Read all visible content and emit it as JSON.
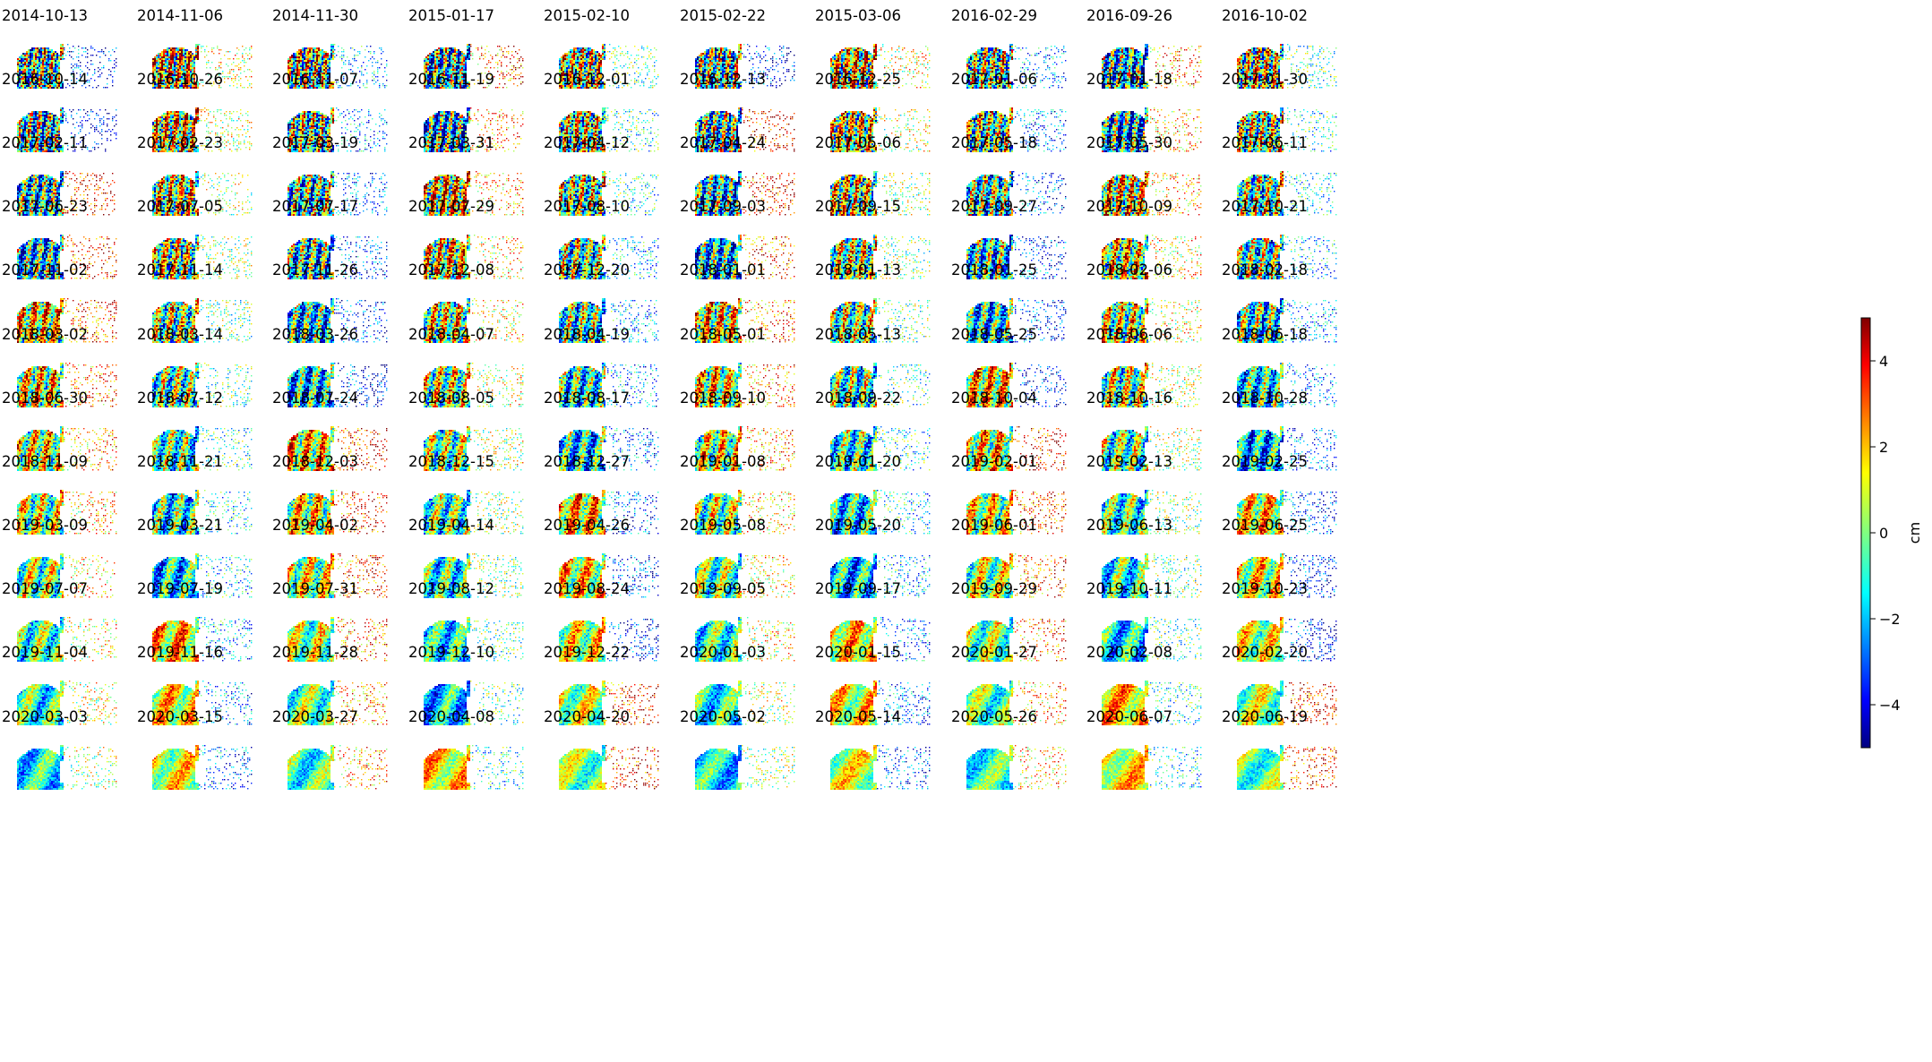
{
  "chart_data": {
    "type": "heatmap",
    "title": "",
    "layout": {
      "rows": 12,
      "cols": 10
    },
    "panels": [
      "2014-10-13",
      "2014-11-06",
      "2014-11-30",
      "2015-01-17",
      "2015-02-10",
      "2015-02-22",
      "2015-03-06",
      "2016-02-29",
      "2016-09-26",
      "2016-10-02",
      "2016-10-14",
      "2016-10-26",
      "2016-11-07",
      "2016-11-19",
      "2016-12-01",
      "2016-12-13",
      "2016-12-25",
      "2017-01-06",
      "2017-01-18",
      "2017-01-30",
      "2017-02-11",
      "2017-02-23",
      "2017-03-19",
      "2017-03-31",
      "2017-04-12",
      "2017-04-24",
      "2017-05-06",
      "2017-05-18",
      "2017-05-30",
      "2017-06-11",
      "2017-06-23",
      "2017-07-05",
      "2017-07-17",
      "2017-07-29",
      "2017-08-10",
      "2017-09-03",
      "2017-09-15",
      "2017-09-27",
      "2017-10-09",
      "2017-10-21",
      "2017-11-02",
      "2017-11-14",
      "2017-11-26",
      "2017-12-08",
      "2017-12-20",
      "2018-01-01",
      "2018-01-13",
      "2018-01-25",
      "2018-02-06",
      "2018-02-18",
      "2018-03-02",
      "2018-03-14",
      "2018-03-26",
      "2018-04-07",
      "2018-04-19",
      "2018-05-01",
      "2018-05-13",
      "2018-05-25",
      "2018-06-06",
      "2018-06-18",
      "2018-06-30",
      "2018-07-12",
      "2018-07-24",
      "2018-08-05",
      "2018-08-17",
      "2018-09-10",
      "2018-09-22",
      "2018-10-04",
      "2018-10-16",
      "2018-10-28",
      "2018-11-09",
      "2018-11-21",
      "2018-12-03",
      "2018-12-15",
      "2018-12-27",
      "2019-01-08",
      "2019-01-20",
      "2019-02-01",
      "2019-02-13",
      "2019-02-25",
      "2019-03-09",
      "2019-03-21",
      "2019-04-02",
      "2019-04-14",
      "2019-04-26",
      "2019-05-08",
      "2019-05-20",
      "2019-06-01",
      "2019-06-13",
      "2019-06-25",
      "2019-07-07",
      "2019-07-19",
      "2019-07-31",
      "2019-08-12",
      "2019-08-24",
      "2019-09-05",
      "2019-09-17",
      "2019-09-29",
      "2019-10-11",
      "2019-10-23",
      "2019-11-04",
      "2019-11-16",
      "2019-11-28",
      "2019-12-10",
      "2019-12-22",
      "2020-01-03",
      "2020-01-15",
      "2020-01-27",
      "2020-02-08",
      "2020-02-20",
      "2020-03-03",
      "2020-03-15",
      "2020-03-27",
      "2020-04-08",
      "2020-04-20",
      "2020-05-02",
      "2020-05-14",
      "2020-05-26",
      "2020-06-07",
      "2020-06-19"
    ],
    "colorbar": {
      "label": "cm",
      "colormap": "jet",
      "vmin": -5,
      "vmax": 5,
      "ticks": [
        4,
        2,
        0,
        -2,
        -4
      ],
      "tick_labels": [
        "4",
        "2",
        "0",
        "−2",
        "−4"
      ]
    },
    "axes_visible": false
  }
}
